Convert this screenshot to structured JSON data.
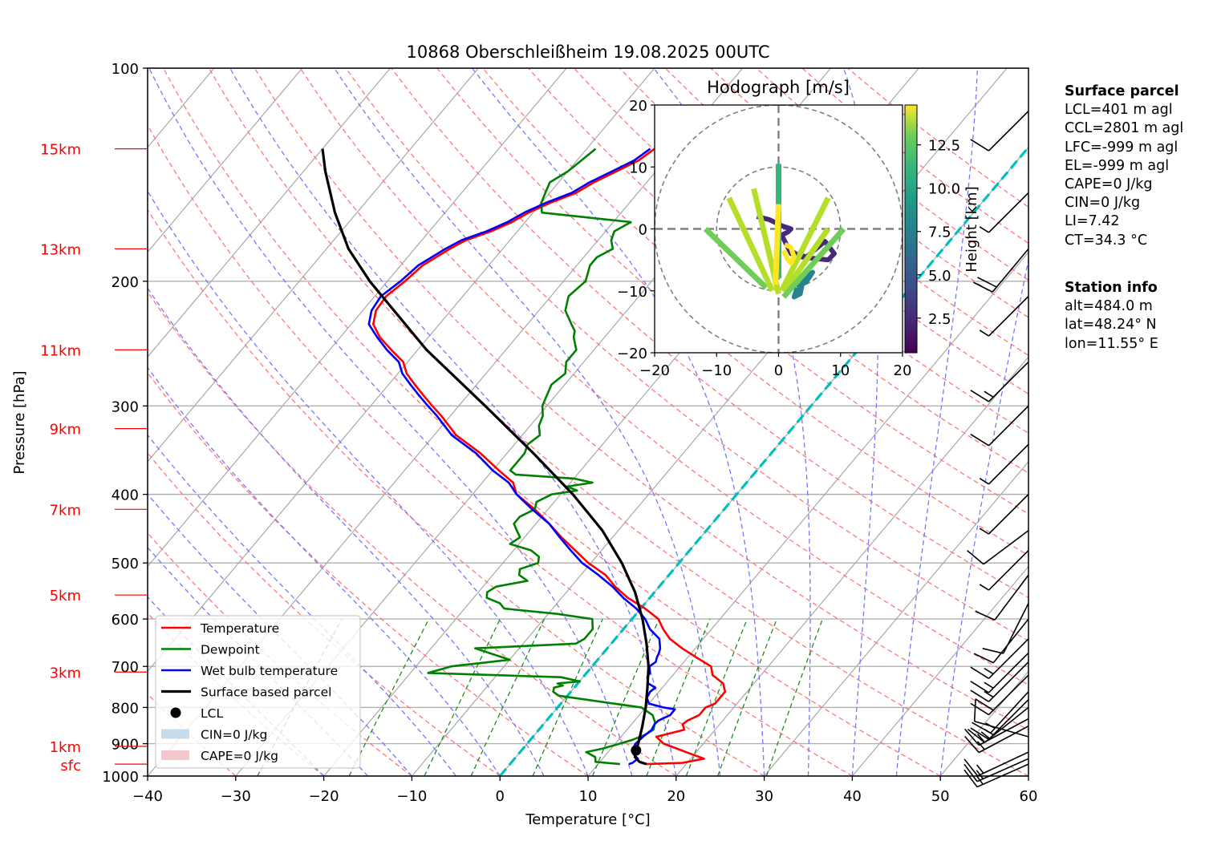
{
  "chart_data": {
    "type": "line",
    "title": "10868 Oberschleißheim 19.08.2025 00UTC",
    "xlabel": "Temperature [°C]",
    "ylabel": "Pressure [hPa]",
    "xlim": [
      -40,
      60
    ],
    "ylim": [
      1000,
      100
    ],
    "x_ticks": [
      "−40",
      "−30",
      "−20",
      "−10",
      "0",
      "10",
      "20",
      "30",
      "40",
      "50",
      "60"
    ],
    "x_tick_values": [
      -40,
      -30,
      -20,
      -10,
      0,
      10,
      20,
      30,
      40,
      50,
      60
    ],
    "y_ticks": [
      "100",
      "200",
      "300",
      "400",
      "500",
      "600",
      "700",
      "800",
      "900",
      "1000"
    ],
    "y_tick_values": [
      100,
      200,
      300,
      400,
      500,
      600,
      700,
      800,
      900,
      1000
    ],
    "height_labels": [
      {
        "label": "15km",
        "p": 130
      },
      {
        "label": "13km",
        "p": 180
      },
      {
        "label": "11km",
        "p": 250
      },
      {
        "label": "9km",
        "p": 323
      },
      {
        "label": "7km",
        "p": 420
      },
      {
        "label": "5km",
        "p": 555
      },
      {
        "label": "3km",
        "p": 713
      },
      {
        "label": "1km",
        "p": 908
      },
      {
        "label": "sfc",
        "p": 962
      }
    ],
    "series": [
      {
        "name": "Temperature",
        "color": "#ff0000",
        "p": [
          962,
          958,
          945,
          930,
          915,
          900,
          880,
          860,
          845,
          835,
          820,
          800,
          790,
          775,
          760,
          740,
          720,
          700,
          680,
          660,
          640,
          620,
          600,
          580,
          560,
          540,
          520,
          500,
          480,
          460,
          440,
          420,
          400,
          385,
          370,
          350,
          330,
          310,
          300,
          290,
          280,
          270,
          260,
          250,
          240,
          230,
          220,
          210,
          200,
          190,
          180,
          175,
          170,
          165,
          160,
          155,
          150,
          145,
          140,
          135,
          130
        ],
        "t": [
          15.5,
          19.5,
          21.5,
          19.5,
          17.5,
          15.5,
          14.0,
          16.5,
          15.8,
          16.0,
          16.8,
          16.8,
          17.5,
          17.5,
          17.5,
          16.5,
          14.5,
          13.5,
          11.0,
          8.5,
          6.2,
          4.5,
          3.0,
          0.5,
          -2.5,
          -5.0,
          -7.2,
          -10.3,
          -13.0,
          -15.8,
          -18.5,
          -21.5,
          -25.0,
          -26.5,
          -29.3,
          -33.0,
          -37.5,
          -41.0,
          -43.0,
          -45.0,
          -47.0,
          -49.0,
          -50.5,
          -53.0,
          -55.5,
          -57.5,
          -58.5,
          -58.7,
          -58.0,
          -57.5,
          -56.0,
          -55.0,
          -53.0,
          -51.5,
          -50.5,
          -49.0,
          -47.0,
          -46.0,
          -44.5,
          -43.0,
          -42.3
        ]
      },
      {
        "name": "Dewpoint",
        "color": "#008000",
        "p": [
          962,
          955,
          940,
          925,
          915,
          905,
          890,
          875,
          860,
          840,
          820,
          800,
          790,
          780,
          770,
          760,
          750,
          745,
          740,
          735,
          725,
          715,
          700,
          685,
          670,
          660,
          650,
          640,
          620,
          600,
          590,
          580,
          575,
          570,
          560,
          550,
          540,
          530,
          520,
          510,
          500,
          490,
          480,
          470,
          460,
          450,
          440,
          430,
          420,
          410,
          400,
          395,
          390,
          385,
          380,
          375,
          370,
          360,
          350,
          340,
          330,
          320,
          310,
          300,
          290,
          280,
          270,
          260,
          250,
          240,
          235,
          230,
          220,
          210,
          200,
          190,
          185,
          180,
          175,
          170,
          165,
          160,
          155,
          150,
          145,
          140,
          135,
          130
        ],
        "t": [
          12.5,
          9.5,
          9.0,
          7.5,
          9.0,
          10.0,
          11.5,
          12.5,
          13.0,
          12.5,
          11.5,
          9.5,
          6.0,
          2.5,
          -1.0,
          -2.0,
          -2.3,
          -1.5,
          -2.3,
          0.0,
          -2.5,
          -18.0,
          -16.0,
          -10.0,
          -13.0,
          -15.0,
          -4.0,
          -3.5,
          -3.5,
          -4.5,
          -9.0,
          -15.5,
          -16.0,
          -16.5,
          -18.5,
          -19.0,
          -18.5,
          -15.5,
          -17.0,
          -17.5,
          -16.0,
          -16.5,
          -18.0,
          -21.0,
          -20.5,
          -21.5,
          -22.5,
          -22.5,
          -21.5,
          -22.0,
          -21.0,
          -18.5,
          -20.0,
          -17.5,
          -20.0,
          -27.0,
          -28.0,
          -28.0,
          -28.0,
          -28.5,
          -28.0,
          -29.0,
          -29.5,
          -30.5,
          -31.0,
          -31.5,
          -31.0,
          -32.0,
          -32.0,
          -33.5,
          -34.0,
          -35.0,
          -37.0,
          -38.0,
          -37.5,
          -38.5,
          -38.5,
          -37.5,
          -38.5,
          -39.0,
          -38.0,
          -49.0,
          -50.0,
          -50.5,
          -51.0,
          -50.0,
          -49.5,
          -49.0
        ]
      },
      {
        "name": "Wet bulb temperature",
        "color": "#0000ff",
        "p": [
          962,
          958,
          945,
          930,
          915,
          900,
          880,
          860,
          845,
          835,
          820,
          805,
          800,
          790,
          775,
          760,
          750,
          740,
          725,
          715,
          700,
          690,
          680,
          670,
          660,
          640,
          620,
          600,
          580,
          560,
          540,
          520,
          500,
          480,
          460,
          440,
          420,
          400,
          385,
          370,
          350,
          330,
          310,
          300,
          290,
          280,
          270,
          260,
          250,
          240,
          230,
          220,
          210,
          200,
          190,
          180,
          175,
          170,
          165,
          160,
          155,
          150,
          145,
          140,
          135,
          130
        ],
        "t": [
          13.5,
          13.8,
          14.0,
          13.0,
          12.5,
          12.3,
          12.5,
          12.8,
          12.6,
          12.7,
          13.5,
          13.5,
          12.0,
          10.0,
          9.2,
          9.0,
          9.2,
          8.0,
          7.3,
          7.2,
          6.5,
          6.8,
          6.5,
          6.3,
          6.0,
          5.0,
          3.0,
          1.5,
          -0.5,
          -3.0,
          -5.3,
          -8.0,
          -11.0,
          -13.5,
          -16.0,
          -18.5,
          -21.8,
          -25.0,
          -27.0,
          -30.0,
          -33.5,
          -38.0,
          -41.5,
          -43.5,
          -45.5,
          -47.5,
          -49.5,
          -51.0,
          -53.5,
          -55.8,
          -58.0,
          -59.0,
          -59.3,
          -58.5,
          -58.0,
          -56.5,
          -55.5,
          -53.5,
          -52.0,
          -51.0,
          -49.5,
          -47.5,
          -46.5,
          -45.0,
          -43.5,
          -42.8
        ]
      },
      {
        "name": "Surface based parcel",
        "color": "#000000",
        "p": [
          962,
          955,
          940,
          920,
          910,
          900,
          850,
          800,
          750,
          700,
          650,
          600,
          550,
          500,
          450,
          400,
          350,
          300,
          250,
          200,
          180,
          160,
          140,
          130
        ],
        "t": [
          15.5,
          14.5,
          13.5,
          13.0,
          12.8,
          12.6,
          11.4,
          10.0,
          8.3,
          6.4,
          4.0,
          1.2,
          -2.2,
          -6.5,
          -11.8,
          -18.6,
          -27.0,
          -37.0,
          -49.0,
          -62.0,
          -67.5,
          -72.5,
          -77.5,
          -80.0
        ]
      }
    ],
    "lcl": {
      "label": "LCL",
      "p": 920,
      "t": 13.0
    },
    "legend": {
      "placement": "lower-left",
      "entries": [
        {
          "label": "Temperature",
          "kind": "line",
          "color": "#ff0000"
        },
        {
          "label": "Dewpoint",
          "kind": "line",
          "color": "#008000"
        },
        {
          "label": "Wet bulb temperature",
          "kind": "line",
          "color": "#0000ff"
        },
        {
          "label": "Surface based parcel",
          "kind": "line",
          "color": "#000000"
        },
        {
          "label": "LCL",
          "kind": "marker",
          "color": "#000000"
        },
        {
          "label": "CIN=0 J/kg",
          "kind": "patch",
          "color": "#c6dbeb"
        },
        {
          "label": "CAPE=0 J/kg",
          "kind": "patch",
          "color": "#f2c6cb"
        }
      ]
    },
    "reference_lines": {
      "isotherms_step": 10,
      "dry_adiabats_color": "#ff7777",
      "moist_adiabats_color": "#7777ff",
      "mixing_ratio_color": "#228b22",
      "freezing_isotherm_color": "#00bfbf"
    },
    "wind_barbs": {
      "p": [
        962,
        945,
        925,
        880,
        850,
        830,
        800,
        780,
        760,
        720,
        690,
        670,
        640,
        600,
        570,
        520,
        480,
        450,
        400,
        340,
        300,
        260,
        210,
        180,
        150,
        115
      ],
      "u_kt": [
        18,
        18,
        17,
        14,
        15,
        15,
        15,
        12,
        11,
        16,
        14,
        12,
        12,
        8,
        5,
        6,
        6,
        8,
        5,
        6,
        8,
        12,
        4,
        15,
        6,
        10
      ],
      "v_kt": [
        8,
        8,
        8,
        -4,
        8,
        8,
        12,
        12,
        12,
        16,
        14,
        12,
        12,
        10,
        10,
        8,
        6,
        6,
        5,
        6,
        8,
        12,
        4,
        18,
        6,
        10
      ]
    },
    "hodograph": {
      "title": "Hodograph [m/s]",
      "xlim": [
        -20,
        20
      ],
      "ylim": [
        -20,
        20
      ],
      "x_ticks": [
        "−20",
        "−10",
        "0",
        "10",
        "20"
      ],
      "x_tick_values": [
        -20,
        -10,
        0,
        10,
        20
      ],
      "y_ticks": [
        "−20",
        "−10",
        "0",
        "10",
        "20"
      ],
      "y_tick_values": [
        -20,
        -10,
        0,
        10,
        20
      ],
      "rings": [
        10,
        20
      ],
      "colorbar": {
        "label": "Height [km]",
        "ticks": [
          "2.5",
          "5.0",
          "7.5",
          "10.0",
          "12.5"
        ],
        "tick_values": [
          2.5,
          5.0,
          7.5,
          10.0,
          12.5
        ],
        "range": [
          0.5,
          14.8
        ]
      },
      "segments": [
        {
          "u": [
            -11.8,
            -2.0
          ],
          "v": [
            0.0,
            -9.5
          ],
          "h": 11.0
        },
        {
          "u": [
            -8.0,
            -1.0
          ],
          "v": [
            5.0,
            -10.0
          ],
          "h": 12.5
        },
        {
          "u": [
            -4.0,
            0.0
          ],
          "v": [
            6.5,
            -10.5
          ],
          "h": 13.8
        },
        {
          "u": [
            0.0,
            0.0
          ],
          "v": [
            10.5,
            -8.0
          ],
          "h": 10.5
        },
        {
          "u": [
            0.0,
            -0.5
          ],
          "v": [
            4.0,
            -9.0
          ],
          "h": 14.3
        },
        {
          "u": [
            8.0,
            0.5
          ],
          "v": [
            5.0,
            -10.0
          ],
          "h": 12.5
        },
        {
          "u": [
            8.0,
            1.0
          ],
          "v": [
            0.0,
            -10.0
          ],
          "h": 13.0
        },
        {
          "u": [
            10.5,
            0.8
          ],
          "v": [
            0.0,
            -11.0
          ],
          "h": 12.0
        }
      ],
      "trace_low": {
        "u": [
          -3.5,
          -1.5,
          0.5,
          2.0,
          1.5,
          0.5,
          2.0,
          4.5,
          7.5,
          9.0,
          8.0,
          6.0,
          3.5,
          2.0
        ],
        "v": [
          2.0,
          1.5,
          0.5,
          0.0,
          -0.5,
          -1.0,
          -4.0,
          -4.5,
          -2.0,
          -4.0,
          -5.0,
          -4.8,
          -4.5,
          -3.5
        ],
        "h": 1.5
      },
      "trace_mid": {
        "u": [
          3.0,
          4.5,
          5.5,
          4.0,
          3.5,
          2.5,
          3.0
        ],
        "v": [
          -9.5,
          -8.5,
          -7.0,
          -8.0,
          -10.5,
          -11.0,
          -9.5
        ],
        "h": 7.5
      },
      "trace_high": {
        "u": [
          1.0,
          2.0,
          2.5,
          2.0,
          1.5,
          0.8
        ],
        "v": [
          -2.5,
          -3.0,
          -4.5,
          -5.5,
          -5.0,
          -3.5
        ],
        "h": 14.5
      }
    }
  },
  "info": {
    "surface_parcel": {
      "heading": "Surface parcel",
      "lines": [
        "LCL=401 m agl",
        "CCL=2801 m agl",
        "LFC=-999 m agl",
        "EL=-999 m agl",
        "CAPE=0 J/kg",
        "CIN=0 J/kg",
        "LI=7.42",
        "CT=34.3 °C"
      ]
    },
    "station_info": {
      "heading": "Station info",
      "lines": [
        "alt=484.0 m",
        "lat=48.24° N",
        "lon=11.55° E"
      ]
    }
  }
}
